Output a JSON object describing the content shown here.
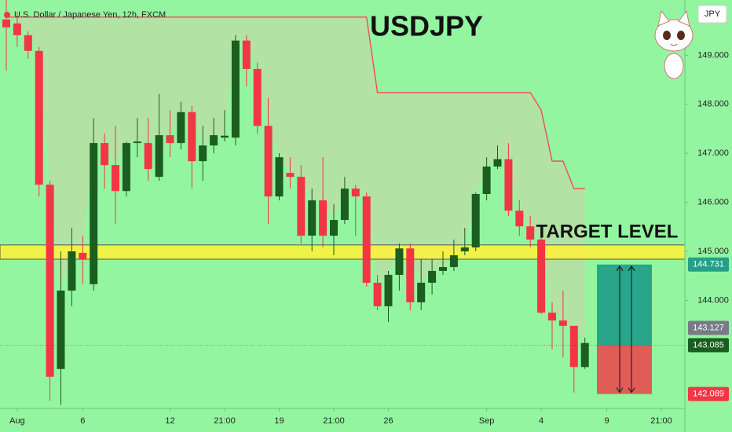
{
  "chart_data": {
    "type": "candlestick",
    "title": "USDJPY",
    "subtitle": "U.S. Dollar / Japanese Yen, 12h, FXCM",
    "currency": "JPY",
    "annotation": "TARGET LEVEL",
    "categories": [
      null,
      "Aug",
      null,
      null,
      null,
      null,
      null,
      "6",
      null,
      null,
      null,
      null,
      null,
      null,
      null,
      "12",
      null,
      null,
      null,
      null,
      "21:00",
      null,
      null,
      null,
      null,
      "19",
      null,
      null,
      null,
      null,
      "21:00",
      null,
      null,
      null,
      null,
      "26",
      null,
      null,
      null,
      null,
      null,
      null,
      null,
      null,
      "Sep",
      null,
      null,
      null,
      null,
      "4",
      null,
      null,
      null,
      null,
      null,
      "9",
      null,
      null,
      null,
      null,
      "21:00"
    ],
    "open": [
      149.73,
      149.65,
      149.41,
      149.09,
      146.36,
      142.6,
      144.2,
      144.97,
      144.33,
      147.21,
      146.76,
      146.23,
      147.21,
      147.21,
      146.52,
      147.37,
      147.21,
      147.84,
      146.84,
      147.16,
      147.32,
      147.32,
      149.3,
      148.72,
      147.56,
      146.12,
      146.6,
      146.52,
      145.32,
      146.04,
      145.32,
      145.64,
      146.28,
      146.12,
      144.36,
      143.88,
      144.52,
      145.06,
      143.96,
      144.36,
      144.6,
      144.68,
      145.0,
      145.08,
      146.17,
      146.73,
      146.88,
      145.83,
      145.51,
      145.24,
      143.75,
      143.59,
      143.48,
      142.64,
      null,
      null,
      null,
      null,
      null,
      null,
      null
    ],
    "high": [
      150.13,
      149.89,
      149.49,
      149.17,
      146.44,
      145.0,
      145.48,
      145.32,
      147.72,
      147.4,
      147.56,
      147.24,
      147.72,
      147.72,
      148.21,
      147.88,
      148.05,
      147.97,
      147.56,
      147.72,
      147.88,
      149.41,
      149.41,
      148.85,
      148.13,
      147.0,
      146.92,
      146.76,
      146.28,
      146.92,
      145.96,
      146.52,
      146.36,
      146.2,
      144.52,
      144.6,
      145.16,
      145.16,
      144.84,
      144.84,
      145.0,
      145.24,
      145.48,
      146.2,
      146.92,
      147.16,
      147.21,
      146.04,
      145.72,
      145.32,
      143.96,
      144.2,
      143.48,
      143.24,
      null,
      null,
      null,
      null,
      null,
      null,
      null
    ],
    "low": [
      148.69,
      149.17,
      148.93,
      146.12,
      141.95,
      141.87,
      143.88,
      144.33,
      144.2,
      146.28,
      145.56,
      146.12,
      146.92,
      146.44,
      146.44,
      146.92,
      147.08,
      146.28,
      146.44,
      147.0,
      147.24,
      147.16,
      148.37,
      147.4,
      145.56,
      146.04,
      146.28,
      145.16,
      145.0,
      145.08,
      144.92,
      145.56,
      145.32,
      144.28,
      143.8,
      143.56,
      144.2,
      143.8,
      143.8,
      144.12,
      144.52,
      144.6,
      144.92,
      145.0,
      146.04,
      146.68,
      145.72,
      145.32,
      145.08,
      143.72,
      143.0,
      142.84,
      142.12,
      142.6,
      null,
      null,
      null,
      null,
      null,
      null,
      null
    ],
    "close": [
      149.57,
      149.41,
      149.09,
      146.36,
      142.44,
      144.2,
      145.0,
      144.84,
      147.21,
      146.76,
      146.23,
      147.21,
      147.24,
      146.68,
      147.37,
      147.21,
      147.84,
      146.84,
      147.16,
      147.37,
      147.36,
      149.3,
      148.72,
      147.56,
      146.12,
      146.92,
      146.52,
      145.32,
      146.04,
      145.32,
      145.64,
      146.28,
      146.12,
      144.36,
      143.88,
      144.52,
      145.06,
      143.96,
      144.36,
      144.6,
      144.68,
      144.92,
      145.08,
      146.17,
      146.73,
      146.88,
      145.83,
      145.51,
      145.24,
      143.75,
      143.59,
      143.48,
      142.64,
      143.13,
      null,
      null,
      null,
      null,
      null,
      null,
      null
    ],
    "up_color": "#1b5e20",
    "down_color": "#f23645",
    "indicator": {
      "color": "#f0525e",
      "fill": "#b9dea6",
      "values": [
        149.78,
        149.78,
        149.78,
        149.78,
        149.78,
        149.78,
        149.78,
        149.78,
        149.78,
        149.78,
        149.78,
        149.78,
        149.78,
        149.78,
        149.78,
        149.78,
        149.78,
        149.78,
        149.78,
        149.78,
        149.78,
        149.78,
        149.78,
        149.78,
        149.78,
        149.78,
        149.78,
        149.78,
        149.78,
        149.78,
        149.78,
        149.78,
        149.78,
        149.78,
        148.24,
        148.24,
        148.24,
        148.24,
        148.24,
        148.24,
        148.24,
        148.24,
        148.24,
        148.24,
        148.24,
        148.24,
        148.24,
        148.24,
        148.24,
        147.88,
        146.84,
        146.84,
        146.28,
        146.28,
        null,
        null,
        null,
        null,
        null,
        null,
        null
      ]
    },
    "zone": {
      "values": [
        144.84,
        145.13
      ],
      "color": "#fff23a"
    },
    "ylim": [
      141.795,
      150.128
    ],
    "yticks": [
      {
        "value": 144,
        "label": "144.000"
      },
      {
        "value": 145,
        "label": "145.000"
      },
      {
        "value": 146,
        "label": "146.000"
      },
      {
        "value": 147,
        "label": "147.000"
      },
      {
        "value": 148,
        "label": "148.000"
      },
      {
        "value": 149,
        "label": "149.000"
      }
    ],
    "price_tags": [
      {
        "value": 144.731,
        "color": "#22a08a"
      },
      {
        "value": 143.127,
        "color": "#787b86"
      },
      {
        "value": 143.085,
        "color": "#1b5e20"
      },
      {
        "value": 142.089,
        "color": "#f23645"
      }
    ]
  }
}
